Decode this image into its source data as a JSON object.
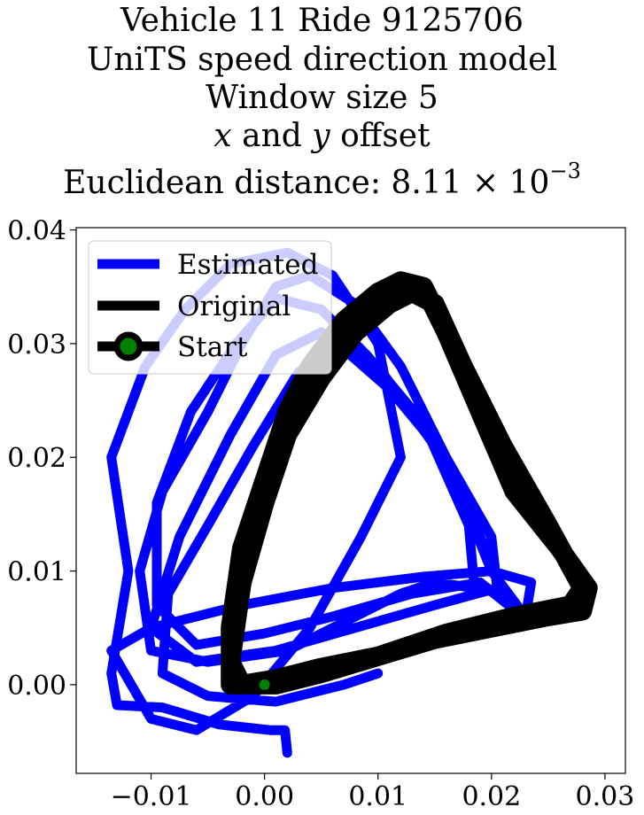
{
  "chart_data": {
    "type": "line",
    "title_lines": [
      "Vehicle 11 Ride 9125706",
      "UniTS speed direction model",
      "Window size 5",
      "x and y offset",
      "Euclidean distance: 8.11 × 10⁻³"
    ],
    "title_math": {
      "offset_x": "x",
      "offset_and": " and ",
      "offset_y": "y",
      "offset_rest": " offset",
      "dist_prefix": "Euclidean distance: 8.11 × 10",
      "dist_exp": "−3"
    },
    "xlim": [
      -0.0166,
      0.0318
    ],
    "ylim": [
      -0.0078,
      0.0402
    ],
    "x_ticks": [
      -0.01,
      0.0,
      0.01,
      0.02,
      0.03
    ],
    "x_tick_labels": [
      "−0.01",
      "0.00",
      "0.01",
      "0.02",
      "0.03"
    ],
    "y_ticks": [
      0.0,
      0.01,
      0.02,
      0.03,
      0.04
    ],
    "y_tick_labels": [
      "0.00",
      "0.01",
      "0.02",
      "0.03",
      "0.04"
    ],
    "grid": false,
    "legend": {
      "placement": "top-left",
      "entries": [
        "Estimated",
        "Original",
        "Start"
      ]
    },
    "series": [
      {
        "name": "Estimated",
        "color": "#0000ff",
        "x": [
          0.002,
          0.0018,
          0.0005,
          -0.004,
          -0.009,
          -0.013,
          -0.0135,
          -0.012,
          -0.0135,
          -0.0105,
          -0.007,
          -0.003,
          0.002,
          0.006,
          0.01,
          0.012,
          0.0085,
          0.004,
          -0.001,
          -0.006,
          -0.01,
          -0.0135,
          -0.01,
          -0.002,
          0.006,
          0.014,
          0.02,
          0.0235,
          0.023,
          0.02,
          0.016,
          0.012,
          0.008,
          0.004,
          0.001,
          -0.002,
          -0.005,
          -0.009,
          -0.011,
          -0.01,
          -0.005,
          0.002,
          0.008,
          0.012,
          0.015,
          0.0185,
          0.018,
          0.014,
          0.009,
          0.005,
          0.001,
          -0.0025,
          -0.0065,
          -0.0095,
          -0.0095,
          -0.006,
          0.0,
          0.006,
          0.013,
          0.019,
          0.0215,
          0.0195,
          0.015,
          0.01,
          0.005,
          0.001,
          -0.003,
          -0.0075,
          -0.01,
          -0.006,
          0.001,
          0.008,
          0.015,
          0.0205,
          0.02,
          0.016,
          0.011,
          0.007,
          0.003,
          -0.001,
          -0.005,
          -0.0085,
          -0.009,
          -0.005,
          0.001,
          0.007,
          0.01
        ],
        "y": [
          -0.006,
          -0.004,
          -0.004,
          -0.0035,
          -0.002,
          -0.0018,
          0.001,
          0.01,
          0.02,
          0.028,
          0.033,
          0.037,
          0.038,
          0.036,
          0.03,
          0.02,
          0.013,
          0.005,
          -0.001,
          -0.004,
          -0.003,
          0.003,
          0.005,
          0.007,
          0.0085,
          0.0095,
          0.01,
          0.009,
          0.006,
          0.01,
          0.02,
          0.028,
          0.0335,
          0.036,
          0.035,
          0.03,
          0.024,
          0.017,
          0.01,
          0.003,
          0.002,
          0.003,
          0.006,
          0.008,
          0.009,
          0.0085,
          0.014,
          0.023,
          0.029,
          0.033,
          0.034,
          0.03,
          0.024,
          0.016,
          0.007,
          0.0035,
          0.0045,
          0.006,
          0.008,
          0.009,
          0.007,
          0.012,
          0.021,
          0.028,
          0.031,
          0.029,
          0.022,
          0.013,
          0.005,
          0.002,
          0.003,
          0.005,
          0.007,
          0.0085,
          0.013,
          0.02,
          0.026,
          0.0295,
          0.0275,
          0.021,
          0.014,
          0.008,
          0.001,
          -0.001,
          -0.0015,
          0.0,
          0.001
        ]
      },
      {
        "name": "Original",
        "color": "#000000",
        "x": [
          0.0,
          -0.003,
          -0.003,
          -0.002,
          0.0,
          0.002,
          0.004,
          0.007,
          0.01,
          0.012,
          0.014,
          0.016,
          0.019,
          0.022,
          0.026,
          0.0285,
          0.028,
          0.025,
          0.02,
          0.015,
          0.01,
          0.005,
          0.001,
          -0.002,
          -0.003,
          -0.002,
          0.0,
          0.002,
          0.005,
          0.008,
          0.011,
          0.013,
          0.015,
          0.0175,
          0.021,
          0.025,
          0.028,
          0.027,
          0.022,
          0.016,
          0.01,
          0.005,
          0.001,
          0.0
        ],
        "y": [
          0.0,
          0.0,
          0.005,
          0.012,
          0.018,
          0.024,
          0.028,
          0.032,
          0.0345,
          0.0355,
          0.035,
          0.031,
          0.024,
          0.017,
          0.012,
          0.0085,
          0.0065,
          0.006,
          0.005,
          0.004,
          0.0025,
          0.0015,
          0.0005,
          0.0,
          0.002,
          0.009,
          0.016,
          0.022,
          0.027,
          0.031,
          0.0335,
          0.0345,
          0.0335,
          0.028,
          0.021,
          0.014,
          0.0085,
          0.007,
          0.006,
          0.0045,
          0.0025,
          0.001,
          0.0,
          0.0
        ]
      }
    ],
    "start_point": {
      "x": 0.0,
      "y": 0.0,
      "color": "#008000"
    }
  }
}
